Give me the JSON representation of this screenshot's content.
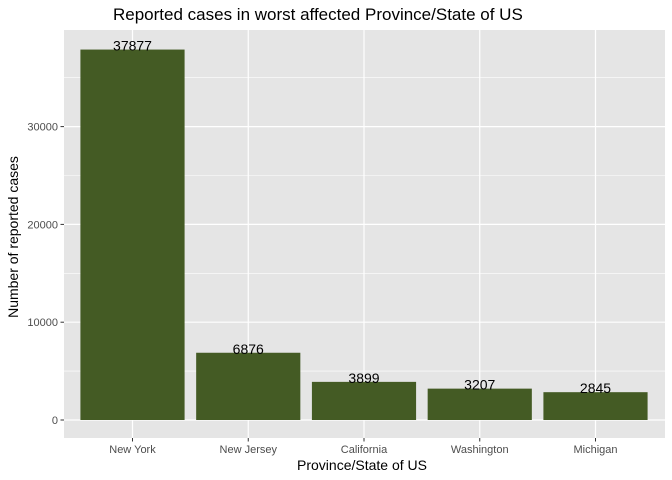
{
  "chart_data": {
    "type": "bar",
    "title": "Reported cases in worst affected Province/State of US",
    "xlabel": "Province/State of US",
    "ylabel": "Number of reported cases",
    "categories": [
      "New York",
      "New Jersey",
      "California",
      "Washington",
      "Michigan"
    ],
    "values": [
      37877,
      6876,
      3899,
      3207,
      2845
    ],
    "data_labels": [
      "37877",
      "6876",
      "3899",
      "3207",
      "2845"
    ],
    "ylim": [
      0,
      39700
    ],
    "yticks": [
      0,
      10000,
      20000,
      30000
    ],
    "ytick_labels": [
      "0",
      "10000",
      "20000",
      "30000"
    ],
    "grid": true,
    "legend": "none",
    "colors": {
      "bar": "#445b24",
      "panel": "#e5e5e5",
      "grid_major": "#ffffff",
      "text": "#000000",
      "tick_text": "#4d4d4d"
    }
  }
}
